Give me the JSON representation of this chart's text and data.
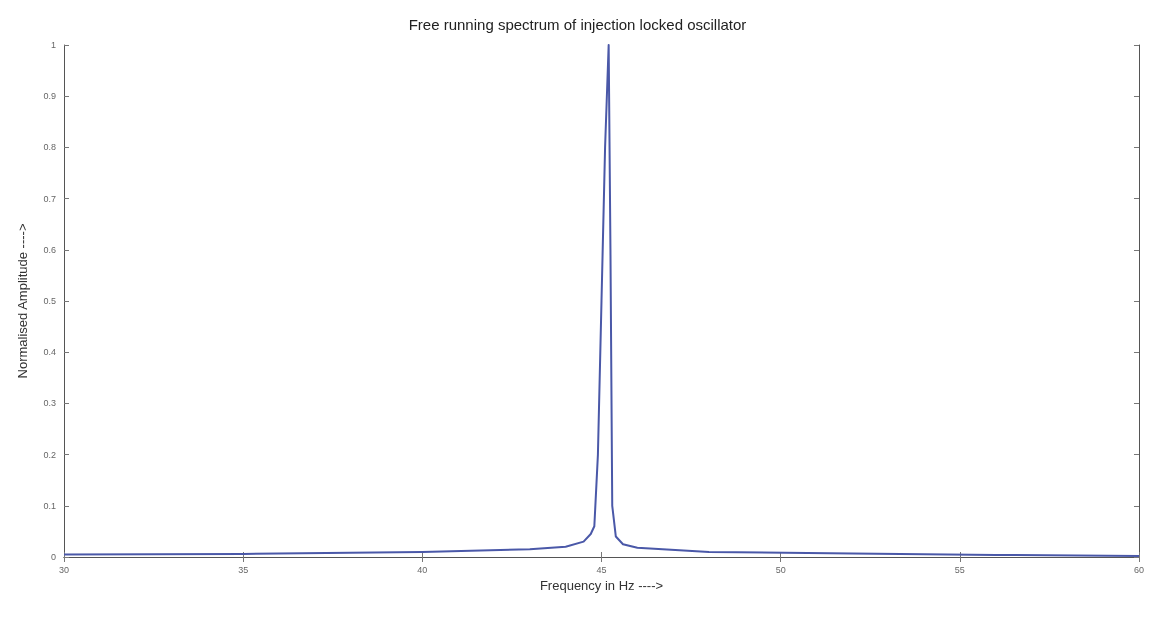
{
  "chart_data": {
    "type": "line",
    "title": "Free running spectrum of injection locked oscillator",
    "xlabel": "Frequency in Hz ---->",
    "ylabel": "Normalised Amplitude ---->",
    "series": [
      {
        "color": "#4a58a8",
        "x": [
          30,
          35,
          40,
          43,
          44,
          44.5,
          44.7,
          44.8,
          44.9,
          45.0,
          45.1,
          45.2,
          45.25,
          45.3,
          45.4,
          45.6,
          46,
          48,
          52,
          56,
          60
        ],
        "values": [
          0.005,
          0.006,
          0.01,
          0.015,
          0.02,
          0.03,
          0.045,
          0.06,
          0.2,
          0.5,
          0.8,
          1,
          0.6,
          0.1,
          0.04,
          0.025,
          0.018,
          0.01,
          0.007,
          0.004,
          0.002
        ]
      }
    ],
    "xlim": [
      30,
      60
    ],
    "xticks": [
      30,
      35,
      40,
      45,
      50,
      55,
      60
    ],
    "ylim": [
      0,
      1
    ],
    "yticks": [
      0,
      0.1,
      0.2,
      0.3,
      0.4,
      0.5,
      0.6,
      0.7,
      0.8,
      0.9,
      1
    ],
    "grid": false,
    "marker": "none",
    "line_style": "solid"
  }
}
